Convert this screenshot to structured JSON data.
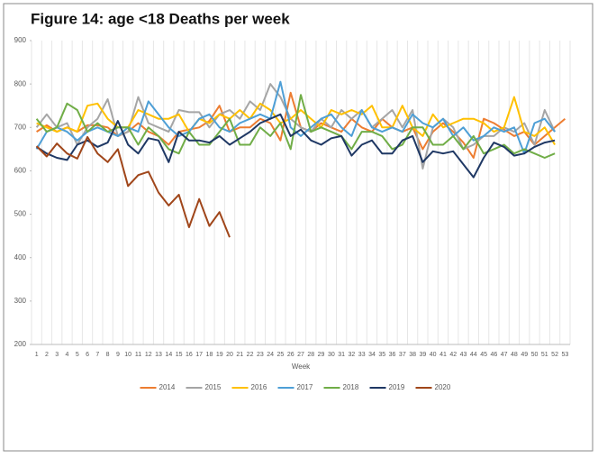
{
  "chart_data": {
    "type": "line",
    "title": "Figure 14: age <18 Deaths per week",
    "x_label": "Week",
    "categories": [
      1,
      2,
      3,
      4,
      5,
      6,
      7,
      8,
      9,
      10,
      11,
      12,
      13,
      14,
      15,
      16,
      17,
      18,
      19,
      20,
      21,
      22,
      23,
      24,
      25,
      26,
      27,
      28,
      29,
      30,
      31,
      32,
      33,
      34,
      35,
      36,
      37,
      38,
      39,
      40,
      41,
      42,
      43,
      44,
      45,
      46,
      47,
      48,
      49,
      50,
      51,
      52,
      53
    ],
    "ylim": [
      200,
      900
    ],
    "yticks": [
      200,
      300,
      400,
      500,
      600,
      700,
      800,
      900
    ],
    "xgrid": true,
    "legend": "bottom",
    "series": [
      {
        "name": "2014",
        "color": "#ed7d31",
        "values": [
          690,
          705,
          690,
          700,
          690,
          705,
          705,
          700,
          680,
          690,
          710,
          690,
          680,
          660,
          690,
          695,
          700,
          715,
          750,
          690,
          700,
          700,
          720,
          710,
          670,
          780,
          700,
          690,
          710,
          700,
          690,
          720,
          700,
          690,
          720,
          700,
          690,
          700,
          650,
          690,
          710,
          690,
          665,
          630,
          720,
          710,
          695,
          680,
          690,
          660,
          680,
          700,
          720
        ]
      },
      {
        "name": "2015",
        "color": "#a5a5a5",
        "values": [
          700,
          730,
          700,
          710,
          660,
          700,
          720,
          765,
          680,
          690,
          770,
          710,
          700,
          690,
          740,
          735,
          735,
          700,
          730,
          740,
          720,
          760,
          740,
          800,
          770,
          720,
          700,
          690,
          720,
          700,
          740,
          720,
          740,
          700,
          720,
          740,
          700,
          740,
          605,
          700,
          720,
          700,
          650,
          660,
          680,
          680,
          700,
          690,
          710,
          660,
          740,
          690,
          null
        ]
      },
      {
        "name": "2016",
        "color": "#ffc000",
        "values": [
          710,
          700,
          690,
          700,
          690,
          750,
          755,
          720,
          700,
          700,
          740,
          730,
          720,
          720,
          730,
          690,
          720,
          710,
          730,
          720,
          740,
          720,
          755,
          740,
          710,
          720,
          740,
          720,
          700,
          740,
          730,
          740,
          730,
          750,
          700,
          700,
          750,
          700,
          680,
          730,
          700,
          710,
          720,
          720,
          710,
          690,
          700,
          770,
          690,
          680,
          700,
          660,
          null
        ]
      },
      {
        "name": "2017",
        "color": "#4e9fd6",
        "values": [
          650,
          690,
          700,
          690,
          670,
          690,
          700,
          690,
          680,
          700,
          690,
          760,
          730,
          700,
          680,
          690,
          720,
          730,
          700,
          690,
          710,
          720,
          730,
          720,
          805,
          700,
          680,
          700,
          720,
          730,
          700,
          680,
          740,
          700,
          690,
          700,
          690,
          730,
          710,
          700,
          720,
          680,
          700,
          670,
          680,
          700,
          690,
          700,
          640,
          710,
          720,
          690,
          null
        ]
      },
      {
        "name": "2018",
        "color": "#70ad47",
        "values": [
          720,
          690,
          700,
          755,
          740,
          690,
          710,
          690,
          700,
          700,
          660,
          700,
          680,
          650,
          640,
          690,
          660,
          660,
          690,
          720,
          660,
          660,
          700,
          680,
          710,
          650,
          775,
          690,
          700,
          690,
          680,
          650,
          690,
          690,
          680,
          650,
          660,
          700,
          700,
          660,
          660,
          680,
          650,
          680,
          640,
          650,
          660,
          640,
          650,
          640,
          630,
          640,
          null
        ]
      },
      {
        "name": "2019",
        "color": "#1f3864",
        "values": [
          655,
          640,
          630,
          625,
          660,
          670,
          655,
          665,
          715,
          660,
          640,
          675,
          670,
          620,
          690,
          670,
          670,
          665,
          680,
          660,
          675,
          690,
          710,
          720,
          730,
          680,
          695,
          670,
          660,
          675,
          680,
          635,
          660,
          670,
          640,
          640,
          670,
          680,
          620,
          645,
          640,
          645,
          615,
          585,
          630,
          665,
          655,
          635,
          640,
          655,
          665,
          670,
          null
        ]
      },
      {
        "name": "2020",
        "color": "#a0461a",
        "values": [
          657,
          633,
          663,
          640,
          628,
          678,
          640,
          620,
          650,
          565,
          590,
          598,
          550,
          520,
          545,
          470,
          535,
          473,
          505,
          447,
          null,
          null,
          null,
          null,
          null,
          null,
          null,
          null,
          null,
          null,
          null,
          null,
          null,
          null,
          null,
          null,
          null,
          null,
          null,
          null,
          null,
          null,
          null,
          null,
          null,
          null,
          null,
          null,
          null,
          null,
          null,
          null,
          null
        ]
      }
    ]
  }
}
